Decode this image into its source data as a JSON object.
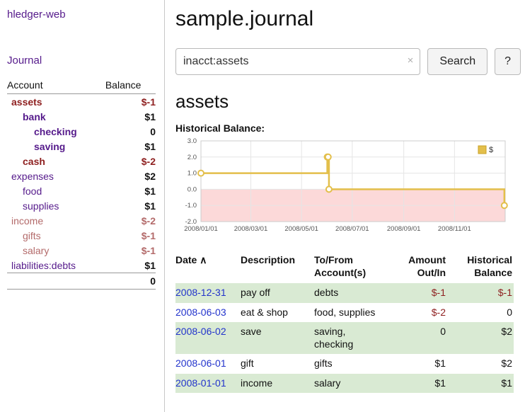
{
  "palette": {
    "purple": "#551a8b",
    "neg": "#8e1f1f",
    "rose": "#b36a6a",
    "blue": "#2233cc",
    "gold": "#e3bf4b",
    "gold-dark": "#c9a227",
    "pink": "#fcd9d9",
    "grid": "#e5e5e5",
    "plot-border": "#cccccc",
    "stripe": "#d9ead3",
    "tick": "#555555"
  },
  "sidebar": {
    "app_title": "hledger-web",
    "journal_link": "Journal",
    "accounts_header": {
      "account": "Account",
      "balance": "Balance"
    },
    "accounts": [
      {
        "name": "assets",
        "balance": "$-1",
        "indent": 1,
        "bold": true,
        "negative": true
      },
      {
        "name": "bank",
        "balance": "$1",
        "indent": 2,
        "bold": true,
        "negative": false
      },
      {
        "name": "checking",
        "balance": "0",
        "indent": 3,
        "bold": true,
        "negative": false
      },
      {
        "name": "saving",
        "balance": "$1",
        "indent": 3,
        "bold": true,
        "negative": false
      },
      {
        "name": "cash",
        "balance": "$-2",
        "indent": 2,
        "bold": true,
        "negative": true
      },
      {
        "name": "expenses",
        "balance": "$2",
        "indent": 1,
        "bold": false,
        "negative": false
      },
      {
        "name": "food",
        "balance": "$1",
        "indent": 2,
        "bold": false,
        "negative": false
      },
      {
        "name": "supplies",
        "balance": "$1",
        "indent": 2,
        "bold": false,
        "negative": false
      },
      {
        "name": "income",
        "balance": "$-2",
        "indent": 1,
        "bold": false,
        "negative": true
      },
      {
        "name": "gifts",
        "balance": "$-1",
        "indent": 2,
        "bold": false,
        "negative": true
      },
      {
        "name": "salary",
        "balance": "$-1",
        "indent": 2,
        "bold": false,
        "negative": true
      },
      {
        "name": "liabilities:debts",
        "balance": "$1",
        "indent": 1,
        "bold": false,
        "negative": false
      }
    ],
    "total": "0"
  },
  "main": {
    "title": "sample.journal",
    "search": {
      "value": "inacct:assets",
      "clear_icon": "×",
      "search_button": "Search",
      "help_button": "?"
    },
    "account_heading": "assets"
  },
  "chart_data": {
    "type": "line",
    "step": true,
    "title": "Historical Balance:",
    "series": [
      {
        "name": "$",
        "points": [
          [
            "2008-01-01",
            1
          ],
          [
            "2008-06-01",
            2
          ],
          [
            "2008-06-02",
            2
          ],
          [
            "2008-06-03",
            0
          ],
          [
            "2008-12-31",
            -1
          ]
        ]
      }
    ],
    "xlim": [
      "2008-01-01",
      "2009-01-01"
    ],
    "ylim": [
      -2,
      3
    ],
    "x_ticks": [
      "2008/01/01",
      "2008/03/01",
      "2008/05/01",
      "2008/07/01",
      "2008/09/01",
      "2008/11/01"
    ],
    "y_ticks": [
      3,
      2,
      1,
      0,
      -1,
      -2
    ],
    "legend": {
      "label": "$",
      "position": "top-right"
    },
    "negative_region_fill": true,
    "grid": true
  },
  "register": {
    "headers": {
      "date": "Date",
      "sort_icon": "∧",
      "description": "Description",
      "account": "To/From Account(s)",
      "amount": "Amount Out/In",
      "balance": "Historical Balance"
    },
    "rows": [
      {
        "date": "2008-12-31",
        "description": "pay off",
        "account": "debts",
        "amount": "$-1",
        "balance": "$-1"
      },
      {
        "date": "2008-06-03",
        "description": "eat & shop",
        "account": "food, supplies",
        "amount": "$-2",
        "balance": "0"
      },
      {
        "date": "2008-06-02",
        "description": "save",
        "account": "saving, checking",
        "amount": "0",
        "balance": "$2"
      },
      {
        "date": "2008-06-01",
        "description": "gift",
        "account": "gifts",
        "amount": "$1",
        "balance": "$2"
      },
      {
        "date": "2008-01-01",
        "description": "income",
        "account": "salary",
        "amount": "$1",
        "balance": "$1"
      }
    ]
  }
}
